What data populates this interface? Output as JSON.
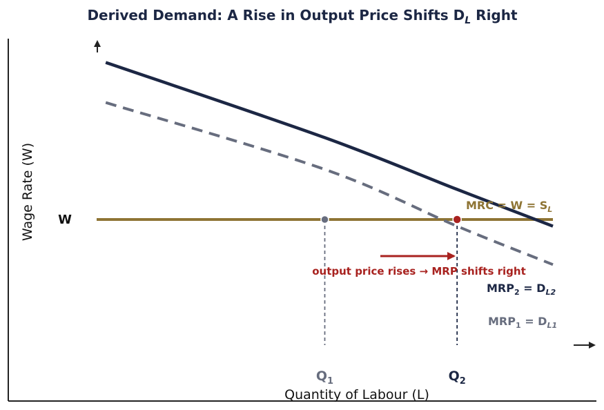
{
  "chart_data": {
    "type": "line",
    "title": "Derived Demand: A Rise in Output Price Shifts D",
    "title_sub": "L",
    "title_tail": " Right",
    "xlabel": "Quantity of Labour (L)",
    "ylabel": "Wage Rate (W)",
    "grid": false,
    "y_tick": "W",
    "x_ticks": [
      {
        "main": "Q",
        "sub": "1"
      },
      {
        "main": "Q",
        "sub": "2"
      }
    ],
    "series": [
      {
        "name": "MRP2 = DL2",
        "label_parts": [
          "MRP",
          "2",
          " = D",
          "L2"
        ],
        "style": "solid",
        "color": "#1c2744",
        "points": [
          [
            0.04,
            0.94
          ],
          [
            1.0,
            0.49
          ],
          [
            1.58,
            0.18
          ],
          [
            2.0,
            -0.04
          ]
        ]
      },
      {
        "name": "MRP1 = DL1",
        "label_parts": [
          "MRP",
          "1",
          " = D",
          "L1"
        ],
        "style": "dashed",
        "color": "#676d7e",
        "points": [
          [
            0.04,
            0.7
          ],
          [
            1.0,
            0.3
          ],
          [
            1.58,
            -0.04
          ],
          [
            2.0,
            -0.27
          ]
        ]
      },
      {
        "name": "MRC = W = SL",
        "label_parts": [
          "MRC = W = S",
          "L"
        ],
        "style": "solid",
        "color": "#8e7434",
        "points": [
          [
            0.0,
            0.0
          ],
          [
            2.0,
            0.0
          ]
        ]
      }
    ],
    "equilibria": [
      {
        "name": "Q1",
        "x": 1.0,
        "y": 0.0,
        "color": "#676d7e"
      },
      {
        "name": "Q2",
        "x": 1.58,
        "y": 0.0,
        "color": "#a8221f"
      }
    ],
    "annotation": {
      "text": "output price rises → MRP shifts right",
      "color": "#a8221f"
    },
    "xlim": [
      0.0,
      2.0
    ],
    "ylim": [
      -0.6,
      1.0
    ],
    "colors": {
      "title": "#1c2744",
      "axis": "#222222",
      "demand2": "#1c2744",
      "demand1": "#676d7e",
      "supply": "#8e7434",
      "shift": "#a8221f"
    }
  }
}
